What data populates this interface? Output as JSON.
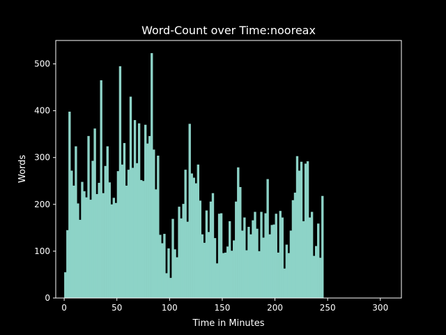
{
  "chart_data": {
    "type": "bar",
    "title": "Word-Count over Time:nooreax",
    "xlabel": "Time in Minutes",
    "ylabel": "Words",
    "xlim": [
      -8,
      320
    ],
    "ylim": [
      0,
      550
    ],
    "xticks": [
      0,
      50,
      100,
      150,
      200,
      250,
      300
    ],
    "yticks": [
      0,
      100,
      200,
      300,
      400,
      500
    ],
    "grid": false,
    "bin_width": 2,
    "x_start": 0,
    "values": [
      55,
      145,
      398,
      272,
      240,
      324,
      202,
      167,
      248,
      228,
      215,
      346,
      210,
      293,
      362,
      222,
      246,
      465,
      224,
      282,
      324,
      247,
      200,
      214,
      203,
      271,
      495,
      285,
      331,
      240,
      274,
      430,
      278,
      380,
      288,
      373,
      252,
      250,
      370,
      330,
      346,
      523,
      317,
      232,
      304,
      135,
      117,
      137,
      53,
      106,
      43,
      169,
      104,
      87,
      195,
      170,
      201,
      274,
      163,
      372,
      266,
      257,
      245,
      285,
      208,
      136,
      118,
      187,
      141,
      206,
      224,
      128,
      74,
      180,
      181,
      96,
      97,
      110,
      164,
      101,
      123,
      206,
      279,
      237,
      144,
      172,
      102,
      152,
      136,
      166,
      184,
      148,
      100,
      184,
      129,
      181,
      254,
      136,
      156,
      157,
      180,
      97,
      186,
      172,
      63,
      114,
      96,
      144,
      209,
      225,
      303,
      272,
      291,
      164,
      287,
      292,
      172,
      184,
      90,
      111,
      159,
      86,
      218
    ]
  },
  "colors": {
    "background": "#000000",
    "bar": "#8dd3c7",
    "axis": "#ffffff",
    "text": "#ffffff"
  }
}
